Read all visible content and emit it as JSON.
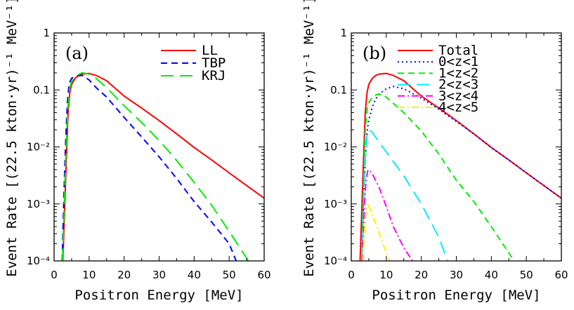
{
  "chart_data": [
    {
      "type": "line",
      "panel_label": "(a)",
      "xlabel": "Positron Energy [MeV]",
      "ylabel": "Event Rate [(22.5 kton·yr)⁻¹ MeV⁻¹]",
      "xlim": [
        0,
        60
      ],
      "ylim": [
        0.0001,
        1
      ],
      "yscale": "log",
      "xticks": [
        "0",
        "10",
        "20",
        "30",
        "40",
        "50",
        "60"
      ],
      "yticks": [
        "10⁻⁴",
        "10⁻³",
        "10⁻²",
        "0.1",
        "1"
      ],
      "grid": false,
      "legend_position": "top-right",
      "series": [
        {
          "name": "LL",
          "color": "#ff0000",
          "style": "solid",
          "x": [
            2.5,
            3,
            3.5,
            4,
            4.5,
            5,
            6,
            7,
            8,
            10,
            12,
            15,
            20,
            25,
            30,
            35,
            40,
            45,
            50,
            55,
            60
          ],
          "y": [
            0.0001,
            0.0008,
            0.006,
            0.04,
            0.09,
            0.125,
            0.16,
            0.18,
            0.19,
            0.195,
            0.18,
            0.145,
            0.078,
            0.048,
            0.029,
            0.017,
            0.0098,
            0.0059,
            0.0035,
            0.0021,
            0.00126
          ]
        },
        {
          "name": "TBP",
          "color": "#0000ff",
          "style": "dash",
          "x": [
            2.3,
            2.8,
            3.3,
            3.8,
            4.3,
            5,
            6,
            8,
            10,
            12,
            15,
            20,
            25,
            30,
            35,
            40,
            45,
            50,
            52
          ],
          "y": [
            0.0001,
            0.0015,
            0.012,
            0.06,
            0.13,
            0.16,
            0.175,
            0.18,
            0.15,
            0.11,
            0.075,
            0.033,
            0.015,
            0.0067,
            0.0028,
            0.0011,
            0.00048,
            0.0002,
            0.0001
          ]
        },
        {
          "name": "KRJ",
          "color": "#00ee00",
          "style": "longdash",
          "x": [
            2.4,
            2.9,
            3.4,
            3.9,
            4.5,
            5,
            6,
            8,
            10,
            12,
            15,
            20,
            25,
            30,
            35,
            40,
            45,
            50,
            55.5
          ],
          "y": [
            0.0001,
            0.001,
            0.008,
            0.045,
            0.11,
            0.14,
            0.175,
            0.2,
            0.19,
            0.16,
            0.11,
            0.053,
            0.027,
            0.013,
            0.0058,
            0.0024,
            0.00095,
            0.00033,
            0.0001
          ]
        }
      ]
    },
    {
      "type": "line",
      "panel_label": "(b)",
      "xlabel": "Positron Energy [MeV]",
      "ylabel": "Event Rate [(22.5 kton·yr)⁻¹ MeV⁻¹]",
      "xlim": [
        0,
        60
      ],
      "ylim": [
        0.0001,
        1
      ],
      "yscale": "log",
      "xticks": [
        "0",
        "10",
        "20",
        "30",
        "40",
        "50",
        "60"
      ],
      "yticks": [
        "10⁻⁴",
        "10⁻³",
        "10⁻²",
        "0.1",
        "1"
      ],
      "grid": false,
      "legend_position": "top-right",
      "series": [
        {
          "name": "Total",
          "color": "#ff0000",
          "style": "solid",
          "x": [
            2.5,
            3,
            3.5,
            4,
            4.5,
            5,
            6,
            7,
            8,
            10,
            12,
            15,
            20,
            25,
            30,
            35,
            40,
            45,
            50,
            55,
            60
          ],
          "y": [
            0.0001,
            0.0008,
            0.006,
            0.04,
            0.09,
            0.125,
            0.16,
            0.18,
            0.19,
            0.195,
            0.18,
            0.145,
            0.078,
            0.048,
            0.029,
            0.017,
            0.0098,
            0.0059,
            0.0035,
            0.0021,
            0.00126
          ]
        },
        {
          "name": "0<z<1",
          "color": "#0000ff",
          "style": "dot",
          "x": [
            3,
            3.5,
            4,
            4.5,
            5,
            6,
            7,
            8,
            10,
            12,
            15,
            20,
            25,
            30,
            35,
            40,
            45,
            50,
            55,
            60
          ],
          "y": [
            0.0001,
            0.001,
            0.006,
            0.018,
            0.03,
            0.05,
            0.07,
            0.085,
            0.105,
            0.115,
            0.105,
            0.072,
            0.046,
            0.028,
            0.017,
            0.0097,
            0.0059,
            0.0035,
            0.0021,
            0.00126
          ]
        },
        {
          "name": "1<z<2",
          "color": "#00ee00",
          "style": "dash",
          "x": [
            3,
            3.5,
            4,
            4.5,
            5,
            6,
            7,
            8,
            10,
            15,
            20,
            25,
            30,
            35,
            40,
            46.5
          ],
          "y": [
            0.0001,
            0.002,
            0.02,
            0.045,
            0.06,
            0.075,
            0.082,
            0.085,
            0.075,
            0.04,
            0.019,
            0.0075,
            0.0026,
            0.0011,
            0.0004,
            0.0001
          ]
        },
        {
          "name": "2<z<3",
          "color": "#00eeff",
          "style": "longdash",
          "x": [
            3,
            3.5,
            4,
            4.5,
            5,
            6,
            8,
            10,
            15,
            20,
            25,
            27.5
          ],
          "y": [
            0.0001,
            0.0008,
            0.006,
            0.016,
            0.02,
            0.018,
            0.012,
            0.0082,
            0.0031,
            0.001,
            0.00026,
            0.0001
          ]
        },
        {
          "name": "3<z<4",
          "color": "#ff00ff",
          "style": "dashdot",
          "x": [
            3.2,
            3.7,
            4.2,
            4.7,
            5,
            6,
            8,
            10,
            12,
            15,
            17.5
          ],
          "y": [
            0.0001,
            0.0008,
            0.0025,
            0.0038,
            0.004,
            0.0034,
            0.0019,
            0.0009,
            0.0004,
            0.00017,
            0.0001
          ]
        },
        {
          "name": "4<z<5",
          "color": "#ffee00",
          "style": "dashdot",
          "x": [
            3.3,
            3.8,
            4.3,
            4.8,
            5.5,
            7,
            9,
            11
          ],
          "y": [
            0.0001,
            0.00035,
            0.0008,
            0.00095,
            0.0008,
            0.00045,
            0.0002,
            0.0001
          ]
        }
      ]
    }
  ]
}
